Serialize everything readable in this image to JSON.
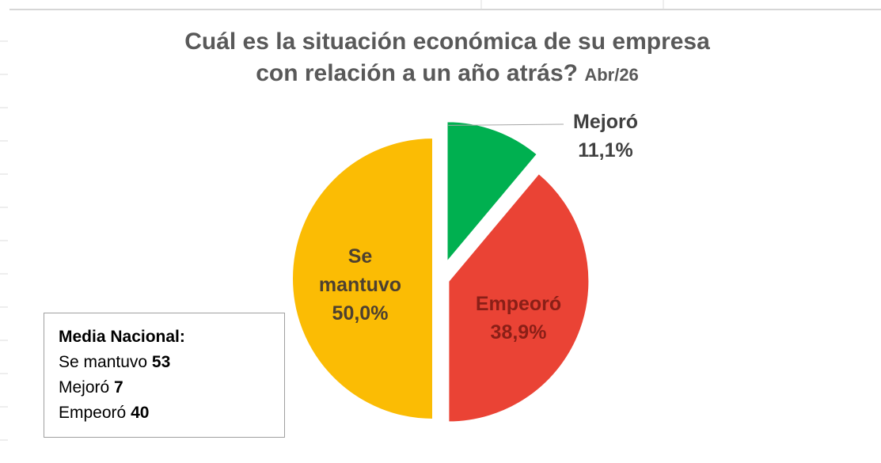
{
  "chart_data": {
    "type": "pie",
    "title": [
      "Cuál es la situación económica de su empresa",
      "con relación a un año atrás?"
    ],
    "subtitle": "Abr/26",
    "categories": [
      "Mejoró",
      "Empeoró",
      "Se mantuvo"
    ],
    "values": [
      11.1,
      38.9,
      50.0
    ],
    "value_labels": [
      "11,1%",
      "38,9%",
      "50,0%"
    ],
    "colors": [
      "#00b050",
      "#ea4335",
      "#fbbc04"
    ],
    "label_colors": [
      "#404040",
      "#8a1f17",
      "#4d4030"
    ]
  },
  "national_average": {
    "title": "Media Nacional:",
    "items": [
      {
        "label": "Se mantuvo",
        "value": 53
      },
      {
        "label": "Mejoró",
        "value": 7
      },
      {
        "label": "Empeoró",
        "value": 40
      }
    ]
  }
}
